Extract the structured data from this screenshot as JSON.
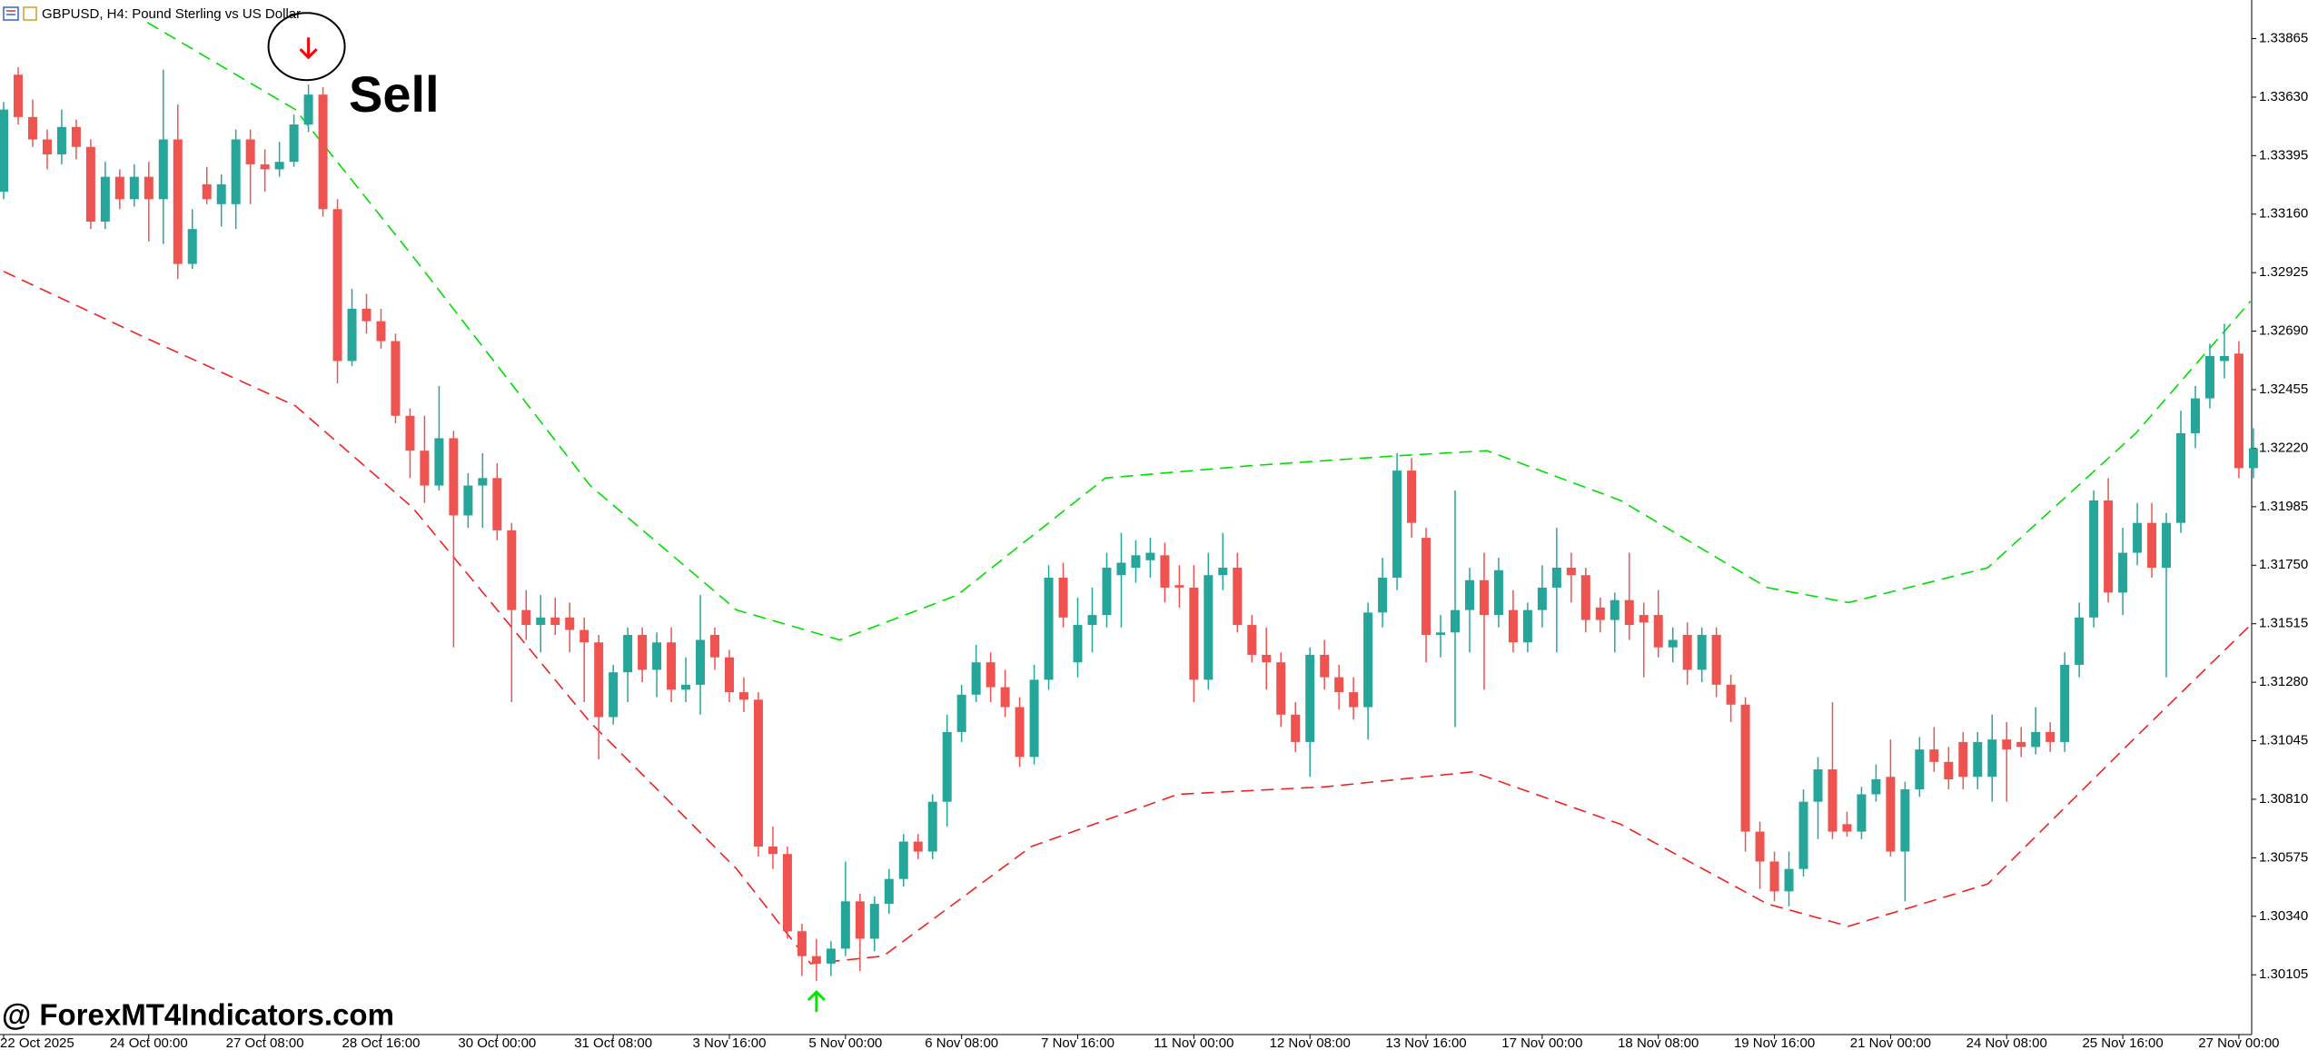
{
  "chart_data": {
    "type": "candlestick",
    "title": "GBPUSD, H4:  Pound Sterling vs US Dollar",
    "annotation": "Sell",
    "watermark": "@ ForexMT4Indicators.com",
    "up_color": "#26a69a",
    "down_color": "#ef5350",
    "ylim": [
      1.29865,
      1.3402
    ],
    "yticks": [
      1.33865,
      {
        "value": 1.3363,
        "label": "1.33630"
      },
      1.33395,
      {
        "value": 1.3316,
        "label": "1.33160"
      },
      1.32925,
      {
        "value": 1.3269,
        "label": "1.32690"
      },
      1.32455,
      {
        "value": 1.3222,
        "label": "1.32220"
      },
      1.31985,
      {
        "value": 1.3175,
        "label": "1.31750"
      },
      1.31515,
      {
        "value": 1.3128,
        "label": "1.31280"
      },
      1.31045,
      {
        "value": 1.3081,
        "label": "1.30810"
      },
      1.30575,
      {
        "value": 1.3034,
        "label": "1.30340"
      },
      1.30105
    ],
    "xticks": [
      {
        "value": 0,
        "label": "22 Oct 2025"
      },
      {
        "value": 10,
        "label": "24 Oct 00:00"
      },
      {
        "value": 18,
        "label": "27 Oct 08:00"
      },
      {
        "value": 26,
        "label": "28 Oct 16:00"
      },
      {
        "value": 34,
        "label": "30 Oct 00:00"
      },
      {
        "value": 42,
        "label": "31 Oct 08:00"
      },
      {
        "value": 50,
        "label": "3 Nov 16:00"
      },
      {
        "value": 58,
        "label": "5 Nov 00:00"
      },
      {
        "value": 66,
        "label": "6 Nov 08:00"
      },
      {
        "value": 74,
        "label": "7 Nov 16:00"
      },
      {
        "value": 82,
        "label": "11 Nov 00:00"
      },
      {
        "value": 90,
        "label": "12 Nov 08:00"
      },
      {
        "value": 98,
        "label": "13 Nov 16:00"
      },
      {
        "value": 106,
        "label": "17 Nov 00:00"
      },
      {
        "value": 114,
        "label": "18 Nov 08:00"
      },
      {
        "value": 122,
        "label": "19 Nov 16:00"
      },
      {
        "value": 130,
        "label": "21 Nov 00:00"
      },
      {
        "value": 138,
        "label": "24 Nov 08:00"
      },
      {
        "value": 146,
        "label": "25 Nov 16:00"
      },
      {
        "value": 154,
        "label": "27 Nov 00:00"
      }
    ],
    "sell_arrow_index": 21,
    "buy_arrow_index": 56,
    "sell_arrow_color": "#ff0000",
    "buy_arrow_color": "#00e600",
    "candles": [
      [
        1.3325,
        1.3361,
        1.3322,
        1.3358
      ],
      [
        1.3372,
        1.3375,
        1.3352,
        1.3355
      ],
      [
        1.3355,
        1.3362,
        1.3343,
        1.3346
      ],
      [
        1.3346,
        1.335,
        1.3334,
        1.334
      ],
      [
        1.334,
        1.3358,
        1.3336,
        1.3351
      ],
      [
        1.3351,
        1.3354,
        1.3338,
        1.3343
      ],
      [
        1.3343,
        1.3346,
        1.331,
        1.3313
      ],
      [
        1.3313,
        1.3337,
        1.331,
        1.3331
      ],
      [
        1.3331,
        1.3334,
        1.3318,
        1.3322
      ],
      [
        1.3322,
        1.3336,
        1.3319,
        1.3331
      ],
      [
        1.3331,
        1.3337,
        1.3305,
        1.3322
      ],
      [
        1.3322,
        1.3374,
        1.3304,
        1.3346
      ],
      [
        1.3346,
        1.336,
        1.329,
        1.3296
      ],
      [
        1.3296,
        1.3318,
        1.3294,
        1.331
      ],
      [
        1.3328,
        1.3335,
        1.332,
        1.3322
      ],
      [
        1.332,
        1.3332,
        1.3311,
        1.3328
      ],
      [
        1.332,
        1.335,
        1.331,
        1.3346
      ],
      [
        1.3346,
        1.335,
        1.332,
        1.3336
      ],
      [
        1.3336,
        1.3342,
        1.3325,
        1.3334
      ],
      [
        1.3334,
        1.3345,
        1.3331,
        1.3337
      ],
      [
        1.3337,
        1.3356,
        1.3335,
        1.3352
      ],
      [
        1.3352,
        1.3368,
        1.3349,
        1.3364
      ],
      [
        1.3364,
        1.3367,
        1.3315,
        1.3318
      ],
      [
        1.3318,
        1.3322,
        1.3248,
        1.3257
      ],
      [
        1.3257,
        1.3286,
        1.3255,
        1.3278
      ],
      [
        1.3278,
        1.3284,
        1.3268,
        1.3273
      ],
      [
        1.3273,
        1.3278,
        1.3262,
        1.3265
      ],
      [
        1.3265,
        1.3268,
        1.3232,
        1.3235
      ],
      [
        1.3235,
        1.3238,
        1.321,
        1.3221
      ],
      [
        1.3221,
        1.3235,
        1.32,
        1.3207
      ],
      [
        1.3207,
        1.3247,
        1.3205,
        1.3226
      ],
      [
        1.3226,
        1.3229,
        1.3142,
        1.3195
      ],
      [
        1.3195,
        1.3212,
        1.319,
        1.3207
      ],
      [
        1.3207,
        1.322,
        1.319,
        1.321
      ],
      [
        1.321,
        1.3216,
        1.3185,
        1.3189
      ],
      [
        1.3189,
        1.3192,
        1.312,
        1.3157
      ],
      [
        1.3157,
        1.3165,
        1.3145,
        1.3151
      ],
      [
        1.3151,
        1.3163,
        1.314,
        1.3154
      ],
      [
        1.3154,
        1.3162,
        1.3147,
        1.3151
      ],
      [
        1.3154,
        1.316,
        1.314,
        1.3149
      ],
      [
        1.3149,
        1.3154,
        1.312,
        1.3144
      ],
      [
        1.3144,
        1.3147,
        1.3097,
        1.3114
      ],
      [
        1.3114,
        1.3135,
        1.3111,
        1.3132
      ],
      [
        1.3132,
        1.315,
        1.312,
        1.3147
      ],
      [
        1.3147,
        1.315,
        1.3128,
        1.3133
      ],
      [
        1.3133,
        1.3148,
        1.3122,
        1.3144
      ],
      [
        1.3144,
        1.315,
        1.312,
        1.3125
      ],
      [
        1.3125,
        1.3138,
        1.312,
        1.3127
      ],
      [
        1.3127,
        1.3163,
        1.3115,
        1.3145
      ],
      [
        1.3147,
        1.315,
        1.3133,
        1.3138
      ],
      [
        1.3138,
        1.3141,
        1.312,
        1.3124
      ],
      [
        1.3124,
        1.313,
        1.3116,
        1.3121
      ],
      [
        1.3121,
        1.3124,
        1.3058,
        1.3062
      ],
      [
        1.3062,
        1.307,
        1.3053,
        1.3059
      ],
      [
        1.3059,
        1.3062,
        1.3025,
        1.3028
      ],
      [
        1.3028,
        1.3031,
        1.301,
        1.3018
      ],
      [
        1.3018,
        1.3025,
        1.3008,
        1.3015
      ],
      [
        1.3015,
        1.3024,
        1.301,
        1.3021
      ],
      [
        1.3021,
        1.3056,
        1.3018,
        1.304
      ],
      [
        1.304,
        1.3043,
        1.3012,
        1.3025
      ],
      [
        1.3025,
        1.3042,
        1.302,
        1.3039
      ],
      [
        1.3039,
        1.3053,
        1.3035,
        1.3049
      ],
      [
        1.3049,
        1.3067,
        1.3046,
        1.3064
      ],
      [
        1.3064,
        1.3067,
        1.3057,
        1.306
      ],
      [
        1.306,
        1.3083,
        1.3057,
        1.308
      ],
      [
        1.308,
        1.3115,
        1.307,
        1.3108
      ],
      [
        1.3108,
        1.3127,
        1.3104,
        1.3123
      ],
      [
        1.3123,
        1.3143,
        1.312,
        1.3136
      ],
      [
        1.3136,
        1.314,
        1.312,
        1.3126
      ],
      [
        1.3126,
        1.3133,
        1.3114,
        1.3118
      ],
      [
        1.3118,
        1.3122,
        1.3094,
        1.3098
      ],
      [
        1.3098,
        1.3135,
        1.3095,
        1.3129
      ],
      [
        1.3129,
        1.3175,
        1.3125,
        1.317
      ],
      [
        1.317,
        1.3176,
        1.315,
        1.3154
      ],
      [
        1.3136,
        1.3162,
        1.313,
        1.3151
      ],
      [
        1.3151,
        1.3166,
        1.314,
        1.3155
      ],
      [
        1.3155,
        1.318,
        1.315,
        1.3174
      ],
      [
        1.3171,
        1.3188,
        1.315,
        1.3176
      ],
      [
        1.3174,
        1.3185,
        1.3168,
        1.3179
      ],
      [
        1.3177,
        1.3186,
        1.317,
        1.318
      ],
      [
        1.3179,
        1.3184,
        1.316,
        1.3166
      ],
      [
        1.3167,
        1.3175,
        1.3158,
        1.3166
      ],
      [
        1.3166,
        1.3175,
        1.312,
        1.3129
      ],
      [
        1.3129,
        1.318,
        1.3125,
        1.3171
      ],
      [
        1.3171,
        1.3188,
        1.3165,
        1.3174
      ],
      [
        1.3174,
        1.318,
        1.3148,
        1.3151
      ],
      [
        1.3151,
        1.3155,
        1.3136,
        1.3139
      ],
      [
        1.3139,
        1.315,
        1.3125,
        1.3136
      ],
      [
        1.3136,
        1.314,
        1.311,
        1.3115
      ],
      [
        1.3115,
        1.312,
        1.31,
        1.3104
      ],
      [
        1.3104,
        1.3142,
        1.309,
        1.3139
      ],
      [
        1.3139,
        1.3145,
        1.3125,
        1.313
      ],
      [
        1.313,
        1.3135,
        1.3117,
        1.3124
      ],
      [
        1.3124,
        1.313,
        1.3113,
        1.3118
      ],
      [
        1.3118,
        1.316,
        1.3105,
        1.3156
      ],
      [
        1.3156,
        1.3178,
        1.315,
        1.317
      ],
      [
        1.317,
        1.322,
        1.3165,
        1.3213
      ],
      [
        1.3213,
        1.3218,
        1.3186,
        1.3192
      ],
      [
        1.3186,
        1.319,
        1.3136,
        1.3147
      ],
      [
        1.3147,
        1.3155,
        1.3138,
        1.3148
      ],
      [
        1.3148,
        1.3205,
        1.311,
        1.3157
      ],
      [
        1.3157,
        1.3174,
        1.314,
        1.3169
      ],
      [
        1.3169,
        1.318,
        1.3125,
        1.3155
      ],
      [
        1.3155,
        1.3178,
        1.315,
        1.3173
      ],
      [
        1.3157,
        1.3165,
        1.314,
        1.3144
      ],
      [
        1.3144,
        1.316,
        1.314,
        1.3157
      ],
      [
        1.3157,
        1.3175,
        1.315,
        1.3166
      ],
      [
        1.3166,
        1.319,
        1.314,
        1.3174
      ],
      [
        1.3174,
        1.318,
        1.316,
        1.3171
      ],
      [
        1.3171,
        1.3174,
        1.3148,
        1.3153
      ],
      [
        1.3158,
        1.3162,
        1.3148,
        1.3153
      ],
      [
        1.3153,
        1.3164,
        1.314,
        1.3161
      ],
      [
        1.3161,
        1.318,
        1.3145,
        1.3151
      ],
      [
        1.3155,
        1.316,
        1.313,
        1.3152
      ],
      [
        1.3155,
        1.3165,
        1.3138,
        1.3142
      ],
      [
        1.3142,
        1.315,
        1.3136,
        1.3145
      ],
      [
        1.3147,
        1.3152,
        1.3127,
        1.3133
      ],
      [
        1.3133,
        1.315,
        1.3128,
        1.3147
      ],
      [
        1.3147,
        1.315,
        1.3122,
        1.3127
      ],
      [
        1.3127,
        1.3131,
        1.3112,
        1.3119
      ],
      [
        1.3119,
        1.3122,
        1.306,
        1.3068
      ],
      [
        1.3068,
        1.3072,
        1.3045,
        1.3056
      ],
      [
        1.3056,
        1.306,
        1.304,
        1.3044
      ],
      [
        1.3044,
        1.306,
        1.3038,
        1.3053
      ],
      [
        1.3053,
        1.3085,
        1.305,
        1.308
      ],
      [
        1.308,
        1.3098,
        1.3065,
        1.3093
      ],
      [
        1.3093,
        1.312,
        1.3065,
        1.3068
      ],
      [
        1.3071,
        1.3076,
        1.3066,
        1.3068
      ],
      [
        1.3068,
        1.3086,
        1.3065,
        1.3083
      ],
      [
        1.3083,
        1.3095,
        1.308,
        1.3089
      ],
      [
        1.309,
        1.3105,
        1.3058,
        1.306
      ],
      [
        1.306,
        1.3088,
        1.304,
        1.3085
      ],
      [
        1.3085,
        1.3106,
        1.3082,
        1.3101
      ],
      [
        1.3101,
        1.311,
        1.3092,
        1.3096
      ],
      [
        1.3096,
        1.3102,
        1.3085,
        1.3089
      ],
      [
        1.3104,
        1.3108,
        1.3085,
        1.309
      ],
      [
        1.309,
        1.3108,
        1.3085,
        1.3104
      ],
      [
        1.309,
        1.3115,
        1.308,
        1.3105
      ],
      [
        1.3105,
        1.3112,
        1.308,
        1.3101
      ],
      [
        1.3104,
        1.311,
        1.3098,
        1.3102
      ],
      [
        1.3102,
        1.3118,
        1.3099,
        1.3108
      ],
      [
        1.3108,
        1.3112,
        1.31,
        1.3104
      ],
      [
        1.3104,
        1.314,
        1.31,
        1.3135
      ],
      [
        1.3135,
        1.316,
        1.313,
        1.3154
      ],
      [
        1.3154,
        1.3205,
        1.315,
        1.3201
      ],
      [
        1.3201,
        1.321,
        1.316,
        1.3164
      ],
      [
        1.3164,
        1.319,
        1.3155,
        1.318
      ],
      [
        1.318,
        1.32,
        1.3175,
        1.3192
      ],
      [
        1.3192,
        1.32,
        1.317,
        1.3174
      ],
      [
        1.3174,
        1.3196,
        1.313,
        1.3192
      ],
      [
        1.3192,
        1.3237,
        1.3188,
        1.3228
      ],
      [
        1.3228,
        1.3247,
        1.3222,
        1.3242
      ],
      [
        1.3242,
        1.3264,
        1.3238,
        1.3259
      ],
      [
        1.3257,
        1.3272,
        1.325,
        1.3259
      ],
      [
        1.326,
        1.3265,
        1.321,
        1.3214
      ],
      [
        1.3214,
        1.323,
        1.321,
        1.3222
      ]
    ],
    "bands": [
      {
        "color": "#00dd00",
        "x": [
          9.9,
          20.1,
          28.2,
          40.4,
          50.5,
          57.6,
          65.7,
          75.9,
          86.0,
          96.1,
          102.2,
          111.4,
          121.5,
          127.1,
          136.7,
          146.9,
          154.8
        ],
        "values": [
          1.3393,
          1.3358,
          1.3299,
          1.3207,
          1.3157,
          1.3145,
          1.3163,
          1.321,
          1.3215,
          1.3219,
          1.3221,
          1.3201,
          1.3166,
          1.316,
          1.3174,
          1.3228,
          1.3281
        ]
      },
      {
        "color": "#ee2222",
        "x": [
          0,
          9.9,
          20.1,
          28.2,
          40.4,
          50.5,
          55.6,
          60.6,
          70.8,
          80.9,
          91.1,
          101.2,
          111.4,
          121.5,
          127.1,
          136.7,
          146.9,
          154.8
        ],
        "values": [
          1.3293,
          1.3266,
          1.3239,
          1.3198,
          1.3112,
          1.3053,
          1.3015,
          1.3018,
          1.3062,
          1.3083,
          1.3086,
          1.3092,
          1.3071,
          1.3039,
          1.303,
          1.3047,
          1.3106,
          1.3151
        ]
      }
    ]
  }
}
